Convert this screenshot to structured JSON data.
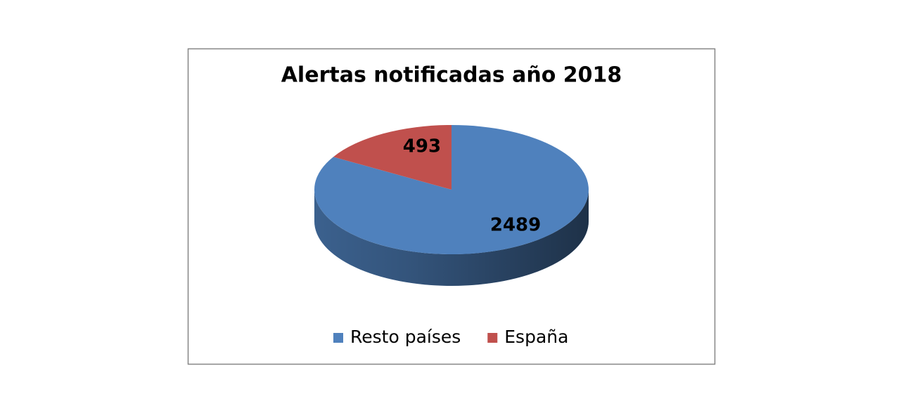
{
  "chart_data": {
    "type": "pie",
    "title": "Alertas notificadas año 2018",
    "categories": [
      "Resto países",
      "España"
    ],
    "values": [
      2489,
      493
    ],
    "colors": [
      "#4f81bd",
      "#c0504d"
    ],
    "legend": "bottom"
  }
}
